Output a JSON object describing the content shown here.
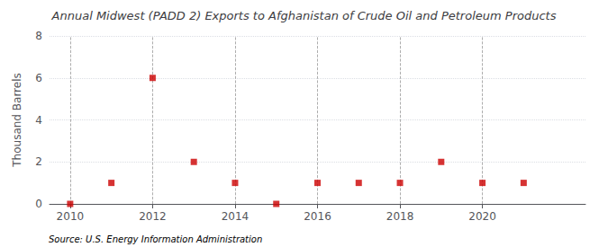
{
  "chart_data": {
    "type": "scatter",
    "title": "Annual Midwest (PADD 2) Exports to Afghanistan of Crude Oil and Petroleum Products",
    "ylabel": "Thousand Barrels",
    "source": "Source: U.S. Energy Information Administration",
    "x": [
      2010,
      2011,
      2012,
      2013,
      2014,
      2015,
      2016,
      2017,
      2018,
      2019,
      2020,
      2021
    ],
    "values": [
      0,
      1,
      6,
      2,
      1,
      0,
      1,
      1,
      1,
      2,
      1,
      1
    ],
    "color": "#cc0000",
    "marker": "square",
    "xlim": [
      2009.5,
      2022.5
    ],
    "xticks": [
      2010,
      2012,
      2014,
      2016,
      2018,
      2020
    ],
    "ylim": [
      0,
      8
    ],
    "yticks": [
      0,
      2,
      4,
      6,
      8
    ],
    "grid": true
  }
}
